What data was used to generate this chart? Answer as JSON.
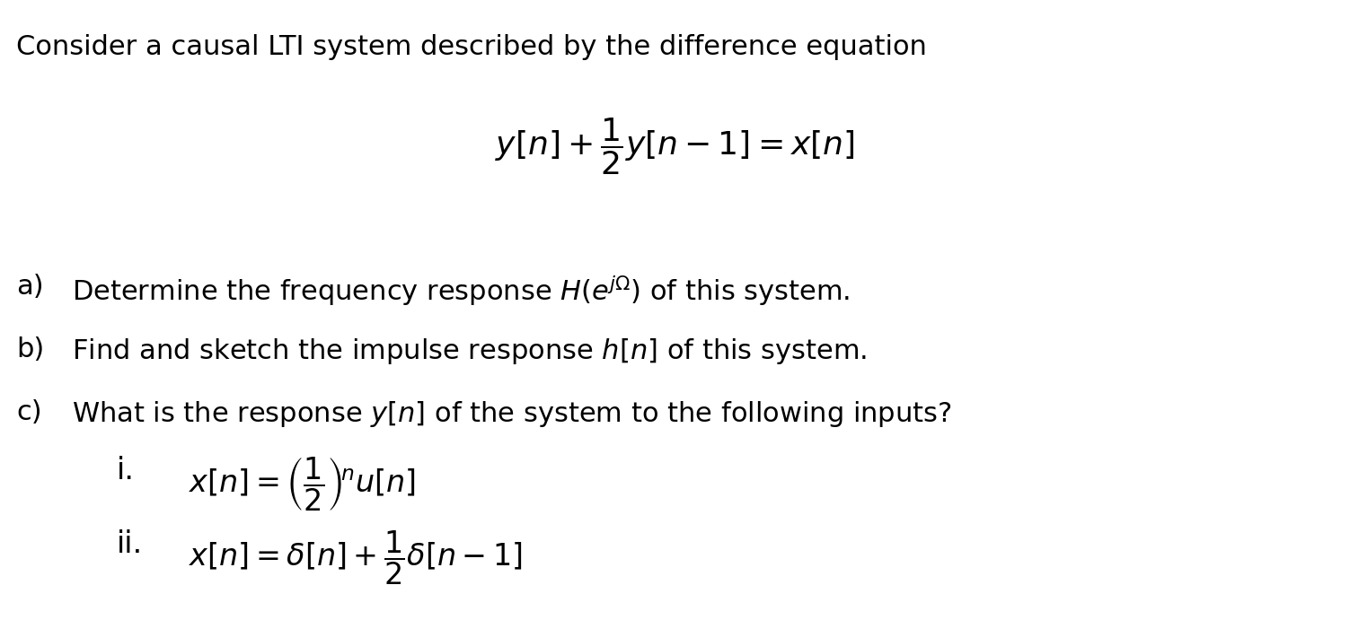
{
  "figsize": [
    15.03,
    6.91
  ],
  "dpi": 100,
  "bg_color": "#ffffff",
  "title_text": "Consider a causal LTI system described by the difference equation",
  "title_fontsize": 22,
  "main_eq_fontsize": 26,
  "item_fontsize": 22,
  "sub_fontsize": 24,
  "items": [
    {
      "label": "a)",
      "text": "Determine the frequency response $H(e^{j\\Omega})$ of this system."
    },
    {
      "label": "b)",
      "text": "Find and sketch the impulse response $h[n]$ of this system."
    },
    {
      "label": "c)",
      "text": "What is the response $y[n]$ of the system to the following inputs?"
    }
  ],
  "subitems": [
    {
      "label": "i.",
      "text": "$x[n] = \\left(\\dfrac{1}{2}\\right)^{\\!n} u[n]$"
    },
    {
      "label": "ii.",
      "text": "$x[n] = \\delta[n] + \\dfrac{1}{2}\\delta[n-1]$"
    }
  ]
}
